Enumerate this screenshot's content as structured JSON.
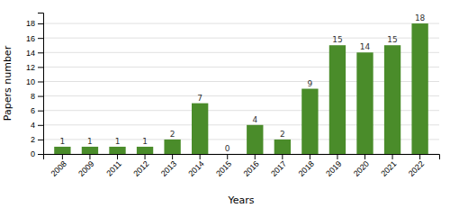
{
  "chart_data": {
    "type": "bar",
    "categories": [
      "2008",
      "2009",
      "2011",
      "2012",
      "2013",
      "2014",
      "2015",
      "2016",
      "2017",
      "2018",
      "2019",
      "2020",
      "2021",
      "2022"
    ],
    "values": [
      1,
      1,
      1,
      1,
      2,
      7,
      0,
      4,
      2,
      9,
      15,
      14,
      15,
      18
    ],
    "color": "#4a8c2a",
    "xlabel": "Years",
    "ylabel": "Papers number",
    "ylim": [
      0,
      19.5
    ],
    "yticks": [
      0,
      2,
      4,
      6,
      8,
      10,
      12,
      14,
      16,
      18
    ],
    "grid": true,
    "data_labels": true
  }
}
